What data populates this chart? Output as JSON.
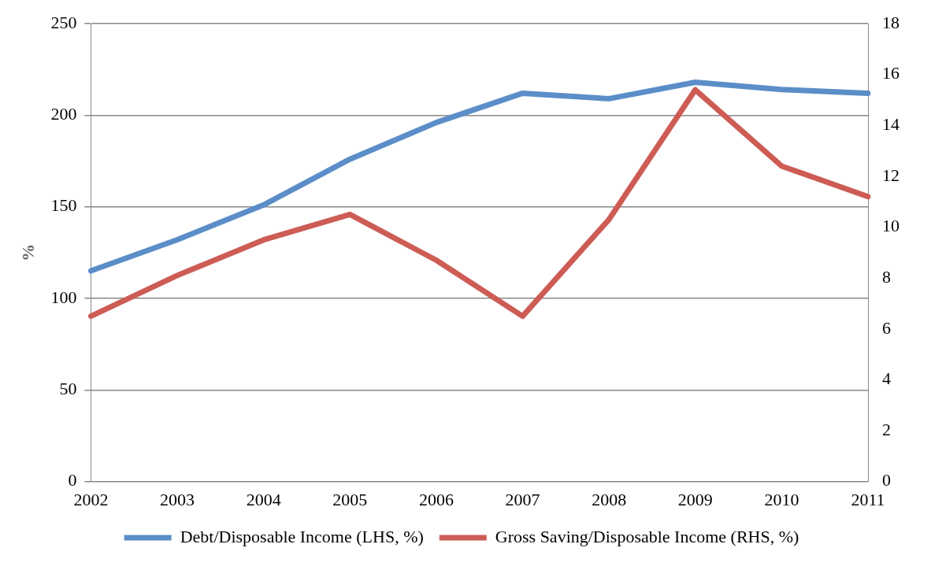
{
  "chart_data": {
    "type": "line",
    "ylabel": "%",
    "categories": [
      "2002",
      "2003",
      "2004",
      "2005",
      "2006",
      "2007",
      "2008",
      "2009",
      "2010",
      "2011"
    ],
    "series": [
      {
        "name": "Debt/Disposable Income (LHS, %)",
        "color": "#5b8ec8",
        "values": [
          115,
          132,
          151,
          176,
          196,
          212,
          209,
          218,
          214,
          212
        ]
      },
      {
        "name": "Gross Saving/Disposable Income (RHS, %)",
        "color": "#cd5c55",
        "axis": "y2",
        "values": [
          6.5,
          8.1,
          9.5,
          10.5,
          8.7,
          6.5,
          10.3,
          15.4,
          12.4,
          11.2
        ]
      }
    ],
    "ylim": [
      0,
      250
    ],
    "yticks": [
      0,
      50,
      100,
      150,
      200,
      250
    ],
    "y2lim": [
      0,
      18
    ],
    "y2ticks": [
      0,
      2,
      4,
      6,
      8,
      10,
      12,
      14,
      16,
      18
    ],
    "grid": "y",
    "legend": "bottom",
    "marker": "none",
    "line_style": "solid"
  }
}
